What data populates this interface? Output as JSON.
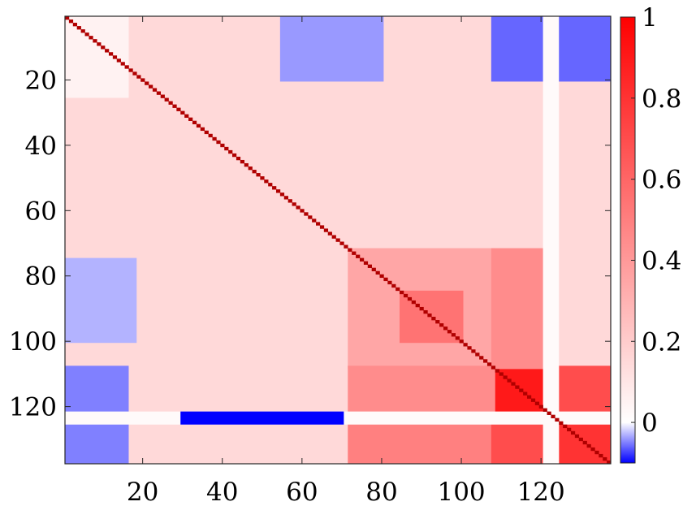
{
  "chart_data": {
    "type": "heatmap",
    "title": "",
    "xlabel": "",
    "ylabel": "",
    "n": 137,
    "xlim": [
      1,
      137
    ],
    "ylim": [
      137,
      1
    ],
    "x_ticks": [
      20,
      40,
      60,
      80,
      100,
      120
    ],
    "x_tick_labels": [
      "20",
      "40",
      "60",
      "80",
      "100",
      "120"
    ],
    "y_ticks": [
      20,
      40,
      60,
      80,
      100,
      120
    ],
    "y_tick_labels": [
      "20",
      "40",
      "60",
      "80",
      "100",
      "120"
    ],
    "color_range": [
      -0.1,
      1
    ],
    "colorbar_ticks": [
      0,
      0.2,
      0.4,
      0.6,
      0.8,
      1
    ],
    "colorbar_tick_labels": [
      "0",
      "0.2",
      "0.4",
      "0.6",
      "0.8",
      "1"
    ],
    "colormap": {
      "low": "#0000ff",
      "zero": "#ffffff",
      "high": "#ff0000"
    },
    "grid": false,
    "approximate_blocks": [
      {
        "rows": [
          1,
          137
        ],
        "cols": [
          1,
          137
        ],
        "value": 0.15
      },
      {
        "rows": [
          1,
          25
        ],
        "cols": [
          1,
          16
        ],
        "value": 0.05
      },
      {
        "rows": [
          108,
          137
        ],
        "cols": [
          1,
          16
        ],
        "value": -0.05
      },
      {
        "rows": [
          75,
          100
        ],
        "cols": [
          1,
          18
        ],
        "value": -0.03
      },
      {
        "rows": [
          1,
          20
        ],
        "cols": [
          55,
          80
        ],
        "value": -0.04
      },
      {
        "rows": [
          1,
          20
        ],
        "cols": [
          108,
          137
        ],
        "value": -0.06
      },
      {
        "rows": [
          72,
          108
        ],
        "cols": [
          72,
          108
        ],
        "value": 0.35
      },
      {
        "rows": [
          85,
          100
        ],
        "cols": [
          85,
          100
        ],
        "value": 0.55
      },
      {
        "rows": [
          108,
          122
        ],
        "cols": [
          108,
          122
        ],
        "value": 0.9
      },
      {
        "rows": [
          108,
          122
        ],
        "cols": [
          72,
          108
        ],
        "value": 0.45
      },
      {
        "rows": [
          72,
          108
        ],
        "cols": [
          108,
          122
        ],
        "value": 0.45
      },
      {
        "rows": [
          125,
          137
        ],
        "cols": [
          125,
          137
        ],
        "value": 0.8
      },
      {
        "rows": [
          125,
          137
        ],
        "cols": [
          72,
          108
        ],
        "value": 0.5
      },
      {
        "rows": [
          125,
          137
        ],
        "cols": [
          108,
          122
        ],
        "value": 0.7
      },
      {
        "rows": [
          108,
          122
        ],
        "cols": [
          125,
          137
        ],
        "value": 0.7
      },
      {
        "rows": [
          122,
          125
        ],
        "cols": [
          1,
          137
        ],
        "value": 0.02
      },
      {
        "rows": [
          1,
          137
        ],
        "cols": [
          121,
          124
        ],
        "value": 0.02
      },
      {
        "rows": [
          122,
          125
        ],
        "cols": [
          30,
          70
        ],
        "value": -0.1
      }
    ],
    "diagonal_value": 1
  }
}
